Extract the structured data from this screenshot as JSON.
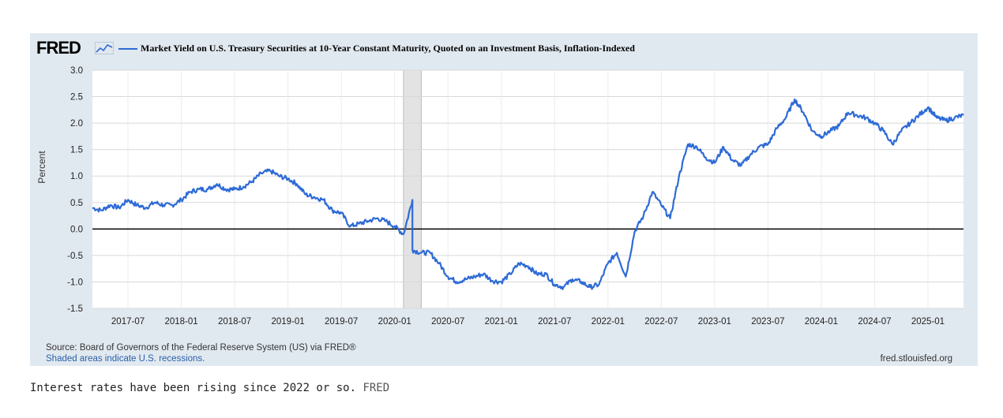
{
  "header": {
    "logo_text": "FRED",
    "logo_icon": "line-graph-icon",
    "legend_label": "Market Yield on U.S. Treasury Securities at 10-Year Constant Maturity, Quoted on an Investment Basis, Inflation-Indexed",
    "legend_color": "#2e6bd6"
  },
  "footer": {
    "source": "Source: Board of Governors of the Federal Reserve System (US) via FRED®",
    "shaded_note": "Shaded areas indicate U.S. recessions.",
    "site": "fred.stlouisfed.org"
  },
  "caption": {
    "text": "Interest rates have been rising since 2022 or so.",
    "source_label": "FRED"
  },
  "chart_data": {
    "type": "line",
    "title": "Market Yield on U.S. Treasury Securities at 10-Year Constant Maturity, Quoted on an Investment Basis, Inflation-Indexed",
    "xlabel": "",
    "ylabel": "Percent",
    "xlim": [
      "2017-03",
      "2025-05"
    ],
    "ylim": [
      -1.5,
      3.0
    ],
    "yticks": [
      "3.0",
      "2.5",
      "2.0",
      "1.5",
      "1.0",
      "0.5",
      "0.0",
      "-0.5",
      "-1.0",
      "-1.5"
    ],
    "xticks": [
      "2017-07",
      "2018-01",
      "2018-07",
      "2019-01",
      "2019-07",
      "2020-01",
      "2020-07",
      "2021-01",
      "2021-07",
      "2022-01",
      "2022-07",
      "2023-01",
      "2023-07",
      "2024-01",
      "2024-07",
      "2025-01"
    ],
    "grid": true,
    "recessions": [
      {
        "start": "2020-02",
        "end": "2020-04"
      }
    ],
    "series": [
      {
        "name": "Market Yield on U.S. Treasury Securities at 10-Year Constant Maturity, Quoted on an Investment Basis, Inflation-Indexed",
        "color": "#2e6bd6",
        "points": [
          [
            "2017-03",
            0.4
          ],
          [
            "2017-04",
            0.35
          ],
          [
            "2017-05",
            0.45
          ],
          [
            "2017-06",
            0.4
          ],
          [
            "2017-07",
            0.55
          ],
          [
            "2017-08",
            0.45
          ],
          [
            "2017-09",
            0.4
          ],
          [
            "2017-10",
            0.5
          ],
          [
            "2017-11",
            0.45
          ],
          [
            "2017-12",
            0.45
          ],
          [
            "2018-01",
            0.55
          ],
          [
            "2018-02",
            0.7
          ],
          [
            "2018-03",
            0.75
          ],
          [
            "2018-04",
            0.75
          ],
          [
            "2018-05",
            0.85
          ],
          [
            "2018-06",
            0.75
          ],
          [
            "2018-07",
            0.75
          ],
          [
            "2018-08",
            0.8
          ],
          [
            "2018-09",
            0.9
          ],
          [
            "2018-10",
            1.05
          ],
          [
            "2018-11",
            1.1
          ],
          [
            "2018-12",
            1.0
          ],
          [
            "2019-01",
            0.95
          ],
          [
            "2019-02",
            0.85
          ],
          [
            "2019-03",
            0.65
          ],
          [
            "2019-04",
            0.6
          ],
          [
            "2019-05",
            0.55
          ],
          [
            "2019-06",
            0.35
          ],
          [
            "2019-07",
            0.3
          ],
          [
            "2019-08",
            0.05
          ],
          [
            "2019-09",
            0.1
          ],
          [
            "2019-10",
            0.15
          ],
          [
            "2019-11",
            0.2
          ],
          [
            "2019-12",
            0.15
          ],
          [
            "2020-01",
            0.05
          ],
          [
            "2020-02",
            -0.1
          ],
          [
            "2020-03",
            0.55
          ],
          [
            "2020-03",
            -0.4
          ],
          [
            "2020-04",
            -0.45
          ],
          [
            "2020-05",
            -0.45
          ],
          [
            "2020-06",
            -0.65
          ],
          [
            "2020-07",
            -0.9
          ],
          [
            "2020-08",
            -1.0
          ],
          [
            "2020-09",
            -0.95
          ],
          [
            "2020-10",
            -0.9
          ],
          [
            "2020-11",
            -0.85
          ],
          [
            "2020-12",
            -0.98
          ],
          [
            "2021-01",
            -1.0
          ],
          [
            "2021-02",
            -0.85
          ],
          [
            "2021-03",
            -0.65
          ],
          [
            "2021-04",
            -0.7
          ],
          [
            "2021-05",
            -0.85
          ],
          [
            "2021-06",
            -0.85
          ],
          [
            "2021-07",
            -1.05
          ],
          [
            "2021-08",
            -1.1
          ],
          [
            "2021-09",
            -0.95
          ],
          [
            "2021-10",
            -1.0
          ],
          [
            "2021-11",
            -1.1
          ],
          [
            "2021-12",
            -1.05
          ],
          [
            "2022-01",
            -0.65
          ],
          [
            "2022-02",
            -0.45
          ],
          [
            "2022-03",
            -0.9
          ],
          [
            "2022-04",
            -0.05
          ],
          [
            "2022-05",
            0.25
          ],
          [
            "2022-06",
            0.7
          ],
          [
            "2022-07",
            0.45
          ],
          [
            "2022-08",
            0.2
          ],
          [
            "2022-09",
            1.0
          ],
          [
            "2022-10",
            1.6
          ],
          [
            "2022-11",
            1.55
          ],
          [
            "2022-12",
            1.35
          ],
          [
            "2023-01",
            1.25
          ],
          [
            "2023-02",
            1.55
          ],
          [
            "2023-03",
            1.3
          ],
          [
            "2023-04",
            1.2
          ],
          [
            "2023-05",
            1.4
          ],
          [
            "2023-06",
            1.55
          ],
          [
            "2023-07",
            1.6
          ],
          [
            "2023-08",
            1.9
          ],
          [
            "2023-09",
            2.1
          ],
          [
            "2023-10",
            2.45
          ],
          [
            "2023-11",
            2.2
          ],
          [
            "2023-12",
            1.85
          ],
          [
            "2024-01",
            1.75
          ],
          [
            "2024-02",
            1.85
          ],
          [
            "2024-03",
            1.95
          ],
          [
            "2024-04",
            2.2
          ],
          [
            "2024-05",
            2.15
          ],
          [
            "2024-06",
            2.1
          ],
          [
            "2024-07",
            2.0
          ],
          [
            "2024-08",
            1.85
          ],
          [
            "2024-09",
            1.6
          ],
          [
            "2024-10",
            1.85
          ],
          [
            "2024-11",
            2.0
          ],
          [
            "2024-12",
            2.15
          ],
          [
            "2025-01",
            2.3
          ],
          [
            "2025-02",
            2.1
          ],
          [
            "2025-03",
            2.05
          ],
          [
            "2025-04",
            2.1
          ],
          [
            "2025-05",
            2.15
          ]
        ]
      }
    ]
  }
}
